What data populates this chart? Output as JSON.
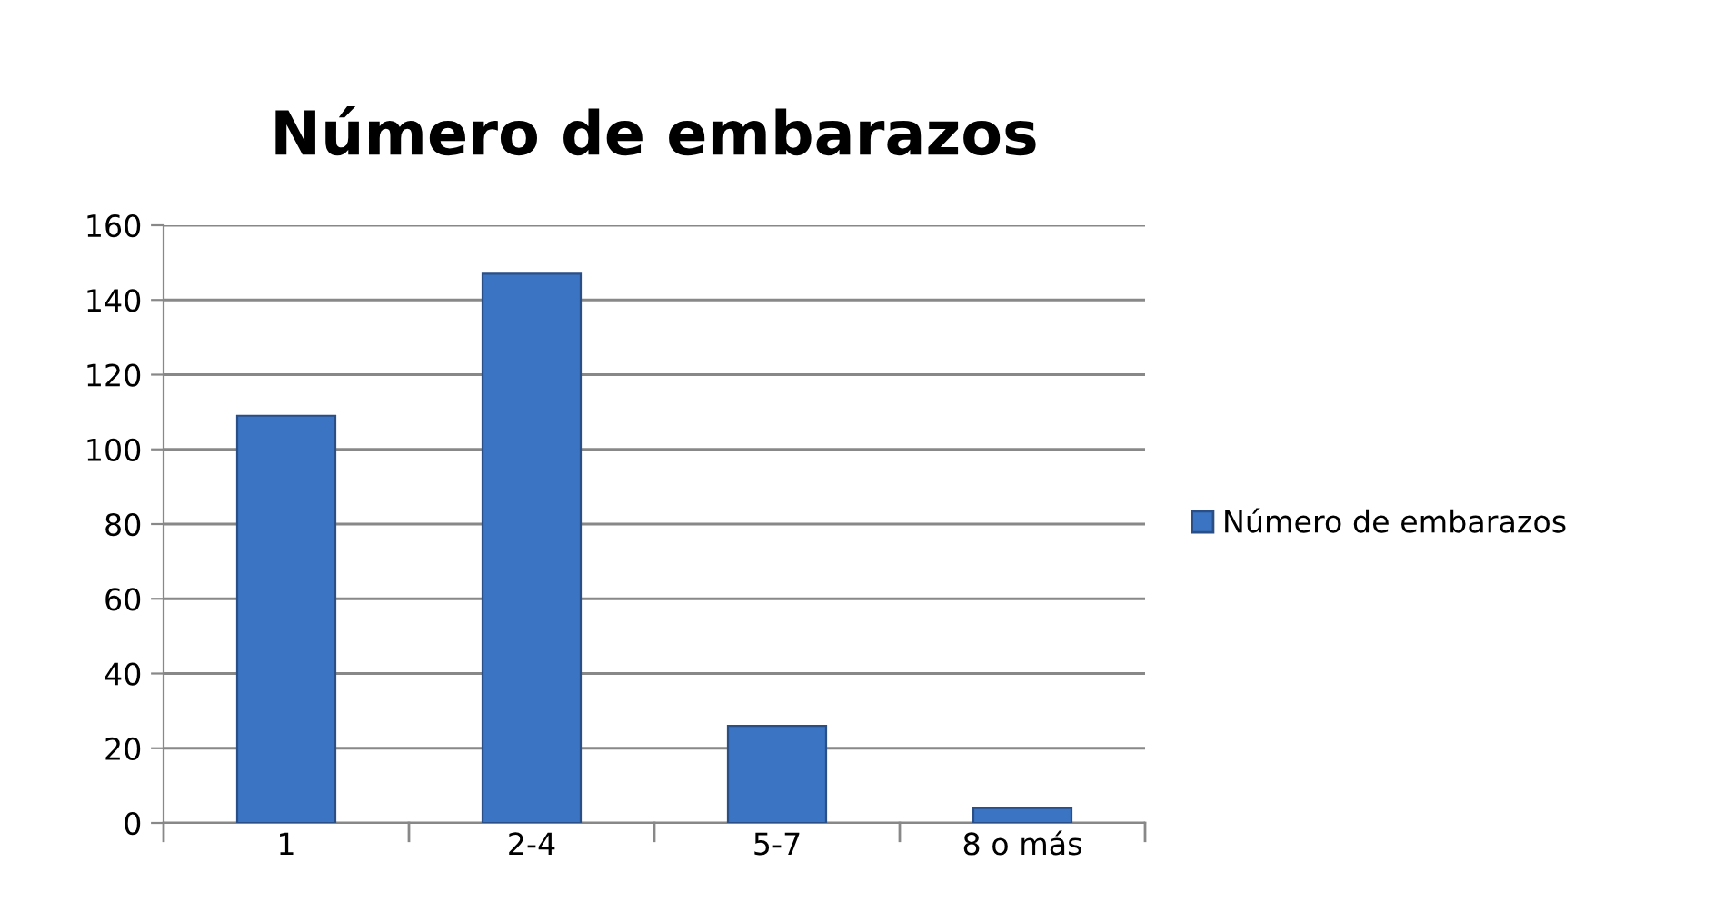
{
  "chart_data": {
    "type": "bar",
    "title": "Número de embarazos",
    "categories": [
      "1",
      "2-4",
      "5-7",
      "8 o más"
    ],
    "series": [
      {
        "name": "Número de embarazos",
        "color": "#3b74c2",
        "values": [
          109,
          147,
          26,
          4
        ]
      }
    ],
    "ylim": [
      0,
      160
    ],
    "yticks": [
      0,
      20,
      40,
      60,
      80,
      100,
      120,
      140,
      160
    ],
    "grid": "y",
    "legend": "right"
  }
}
